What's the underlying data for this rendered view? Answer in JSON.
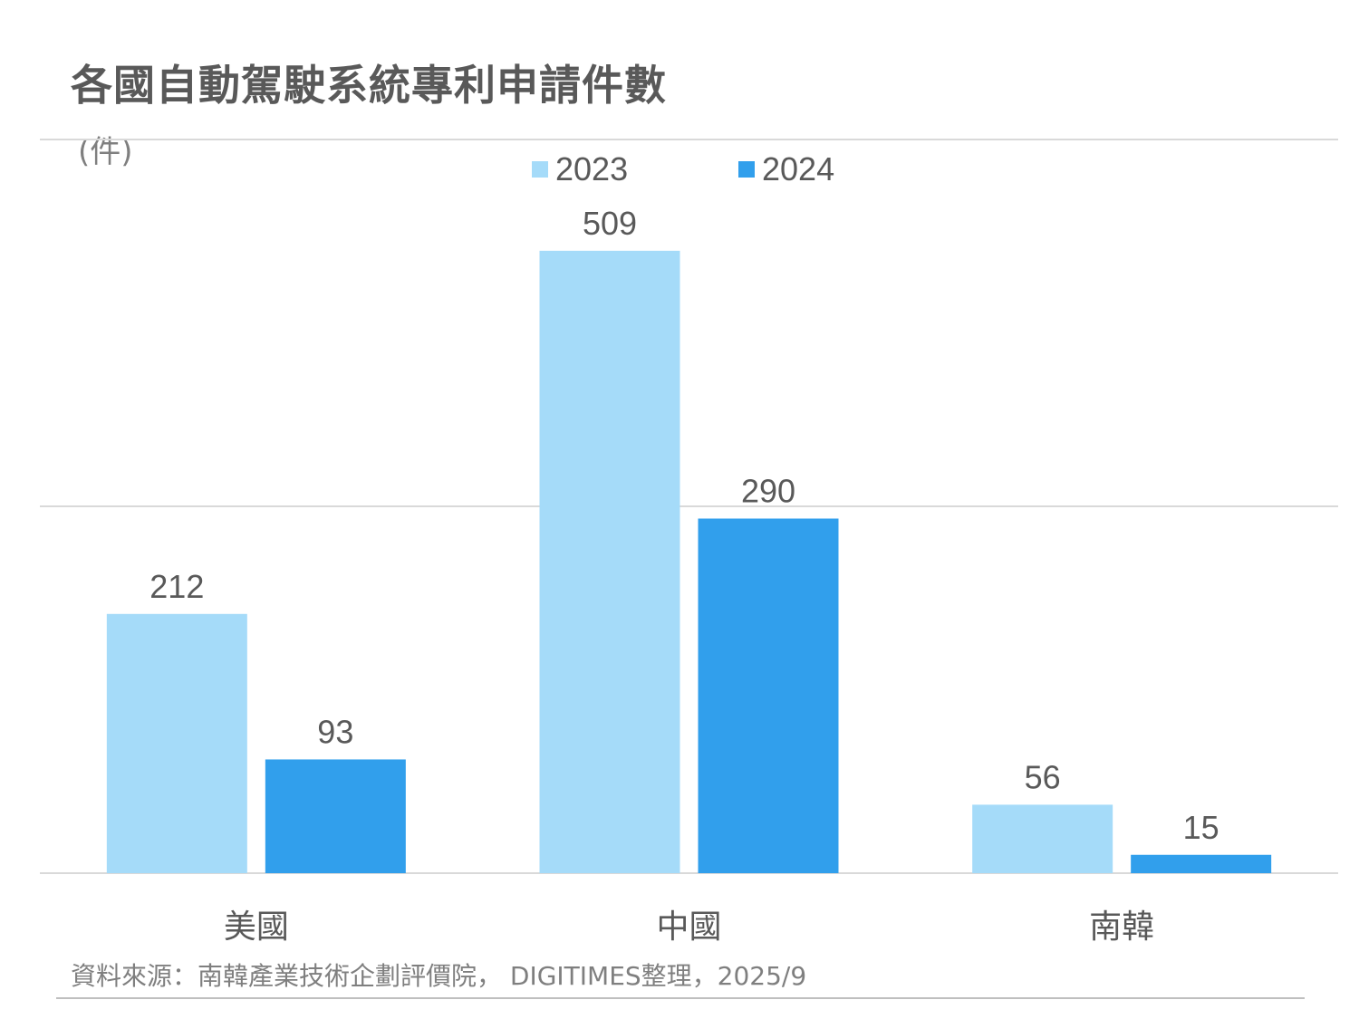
{
  "header": {
    "title": "各國自動駕駛系統專利申請件數",
    "unit": "(件)"
  },
  "footer": {
    "source": "資料來源：南韓產業技術企劃評價院， DIGITIMES整理，2025/9"
  },
  "colors": {
    "series_2023": "#a5dbf9",
    "series_2024": "#319fec",
    "text": "#595959",
    "grid": "#d9d9d9"
  },
  "chart_data": {
    "type": "bar",
    "categories": [
      "美國",
      "中國",
      "南韓"
    ],
    "series": [
      {
        "name": "2023",
        "values": [
          212,
          509,
          56
        ]
      },
      {
        "name": "2024",
        "values": [
          93,
          290,
          15
        ]
      }
    ],
    "ylim": [
      0,
      600
    ],
    "grid": true,
    "legend_position": "top-center"
  }
}
